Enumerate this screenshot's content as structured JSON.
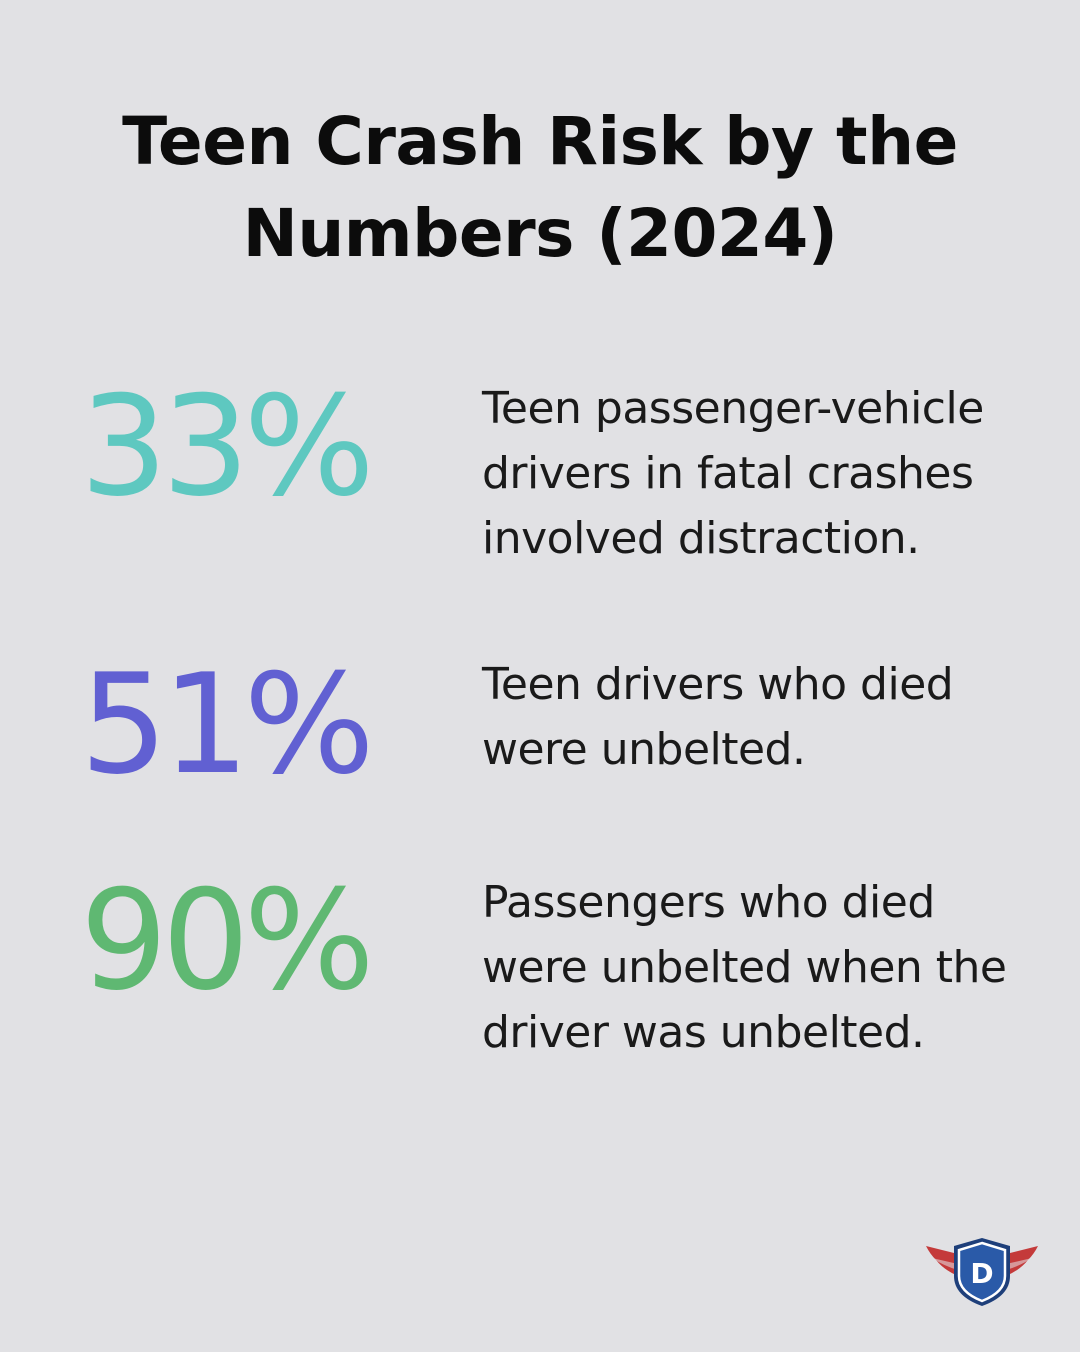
{
  "title": "Teen Crash Risk by the Numbers (2024)",
  "stats": [
    {
      "value": "33%",
      "description": "Teen passenger-vehicle drivers in fatal crashes involved distraction.",
      "color": "#5ec8c0"
    },
    {
      "value": "51%",
      "description": "Teen drivers who died were unbelted.",
      "color": "#6160d2"
    },
    {
      "value": "90%",
      "description": "Passengers who died were unbelted when the driver was unbelted.",
      "color": "#5fb872"
    }
  ],
  "logo": {
    "letter": "D",
    "icon": "winged-shield-logo",
    "colors": {
      "shield": "#2a5aa8",
      "shield_border": "#ffffff",
      "wings": "#c43a3a"
    }
  }
}
